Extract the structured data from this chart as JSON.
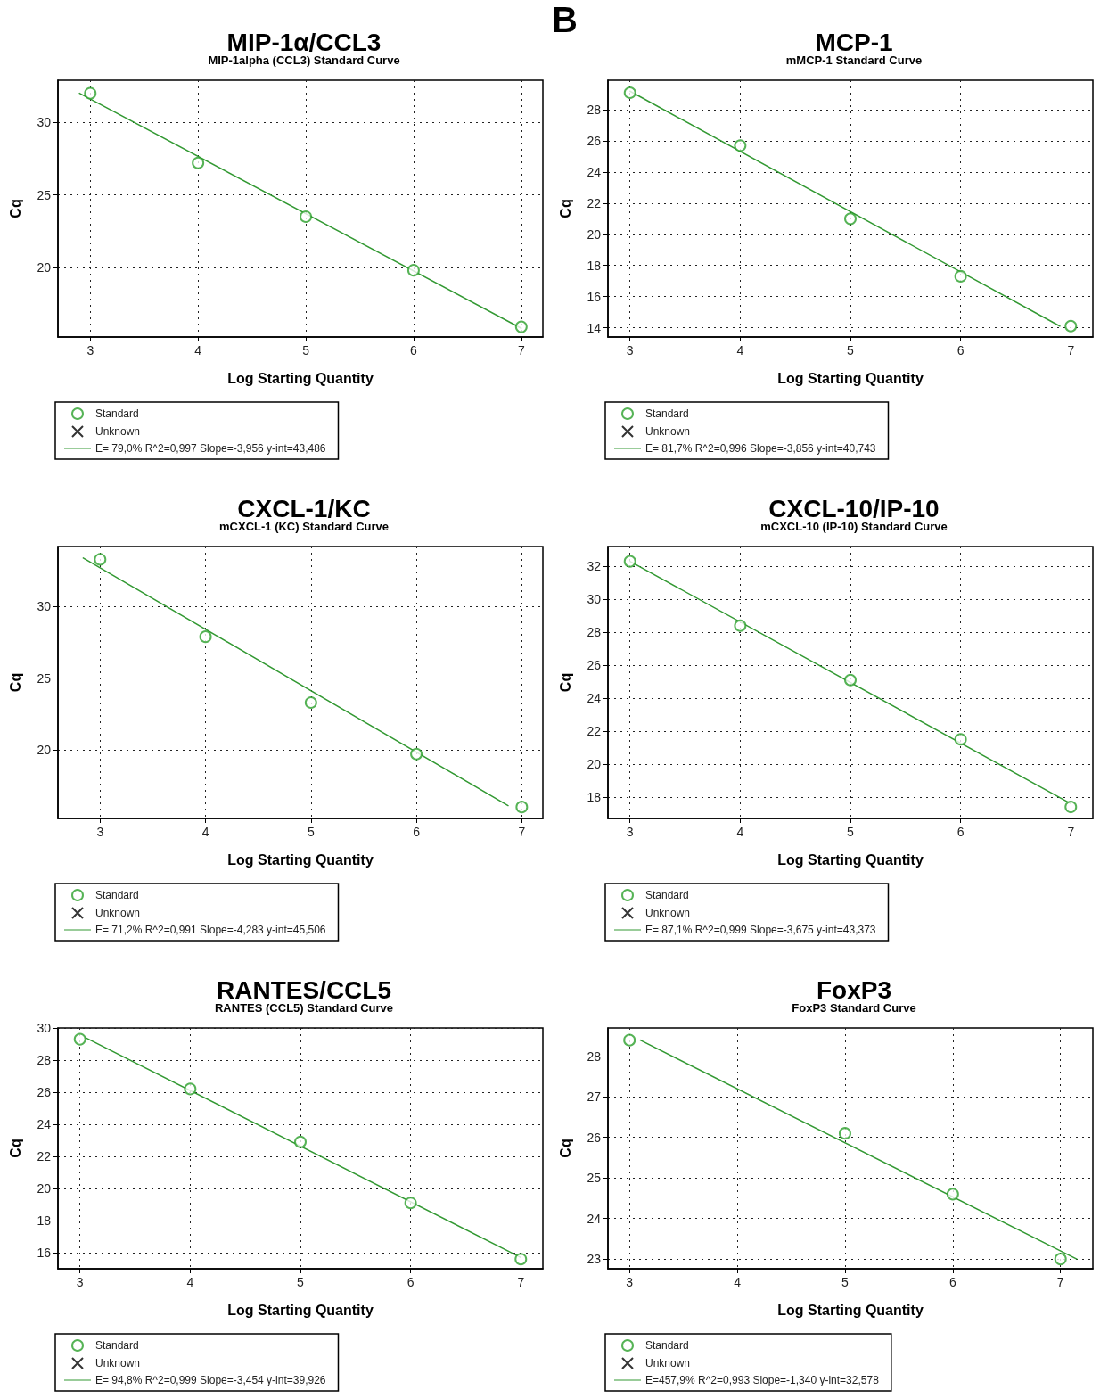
{
  "chart_data": [
    {
      "type": "scatter",
      "title": "MIP-1α/CCL3",
      "subtitle": "MIP-1alpha (CCL3) Standard Curve",
      "xlabel": "Log Starting Quantity",
      "ylabel": "Cq",
      "xlim": [
        2.7,
        7.2
      ],
      "xticks": [
        3,
        4,
        5,
        6,
        7
      ],
      "ylim": [
        15.2,
        32.9
      ],
      "yticks": [
        20,
        25,
        30
      ],
      "grid": true,
      "legend": "bottom left",
      "series": [
        {
          "name": "Standard",
          "marker": "circle",
          "color": "#2ca02c",
          "x": [
            3,
            4,
            5,
            6,
            7
          ],
          "values": [
            32.0,
            27.2,
            23.5,
            19.8,
            15.9
          ]
        },
        {
          "name": "Unknown",
          "marker": "cross",
          "color": "#000000"
        },
        {
          "name": "E= 79,0% R^2=0,997 Slope=-3,956 y-int=43,486",
          "type": "line",
          "marker": "none",
          "line_style": "solid",
          "color": "#339933",
          "x": [
            2.9,
            7.0
          ],
          "values": [
            32.0,
            15.8
          ]
        }
      ]
    },
    {
      "type": "scatter",
      "title": "MCP-1",
      "subtitle": "mMCP-1 Standard Curve",
      "annotations": [
        "B"
      ],
      "xlabel": "Log Starting Quantity",
      "ylabel": "Cq",
      "xlim": [
        2.8,
        7.2
      ],
      "xticks": [
        3,
        4,
        5,
        6,
        7
      ],
      "ylim": [
        13.4,
        29.9
      ],
      "yticks": [
        14,
        16,
        18,
        20,
        22,
        24,
        26,
        28
      ],
      "grid": true,
      "legend": "bottom left",
      "series": [
        {
          "name": "Standard",
          "marker": "circle",
          "color": "#2ca02c",
          "x": [
            3,
            4,
            5,
            6,
            7
          ],
          "values": [
            29.1,
            25.7,
            21.0,
            17.3,
            14.1
          ]
        },
        {
          "name": "Unknown",
          "marker": "cross",
          "color": "#000000"
        },
        {
          "name": "E= 81,7% R^2=0,996 Slope=-3,856 y-int=40,743",
          "type": "line",
          "marker": "none",
          "line_style": "solid",
          "color": "#339933",
          "x": [
            3.0,
            6.9
          ],
          "values": [
            29.2,
            14.1
          ]
        }
      ]
    },
    {
      "type": "scatter",
      "title": "CXCL-1/KC",
      "subtitle": "mCXCL-1 (KC) Standard Curve",
      "xlabel": "Log Starting Quantity",
      "ylabel": "Cq",
      "xlim": [
        2.6,
        7.2
      ],
      "xticks": [
        3,
        4,
        5,
        6,
        7
      ],
      "ylim": [
        15.2,
        34.2
      ],
      "yticks": [
        20,
        25,
        30
      ],
      "grid": true,
      "legend": "bottom left",
      "series": [
        {
          "name": "Standard",
          "marker": "circle",
          "color": "#2ca02c",
          "x": [
            3,
            4,
            5,
            6,
            7
          ],
          "values": [
            33.3,
            27.9,
            23.3,
            19.7,
            16.0
          ]
        },
        {
          "name": "Unknown",
          "marker": "cross",
          "color": "#000000"
        },
        {
          "name": "E= 71,2% R^2=0,991 Slope=-4,283 y-int=45,506",
          "type": "line",
          "marker": "none",
          "line_style": "solid",
          "color": "#339933",
          "x": [
            2.84,
            6.87
          ],
          "values": [
            33.4,
            16.1
          ]
        }
      ]
    },
    {
      "type": "scatter",
      "title": "CXCL-10/IP-10",
      "subtitle": "mCXCL-10 (IP-10) Standard Curve",
      "xlabel": "Log Starting Quantity",
      "ylabel": "Cq",
      "xlim": [
        2.8,
        7.2
      ],
      "xticks": [
        3,
        4,
        5,
        6,
        7
      ],
      "ylim": [
        16.7,
        33.2
      ],
      "yticks": [
        18,
        20,
        22,
        24,
        26,
        28,
        30,
        32
      ],
      "grid": true,
      "legend": "bottom left",
      "series": [
        {
          "name": "Standard",
          "marker": "circle",
          "color": "#2ca02c",
          "x": [
            3,
            4,
            5,
            6,
            7
          ],
          "values": [
            32.3,
            28.4,
            25.1,
            21.5,
            17.4
          ]
        },
        {
          "name": "Unknown",
          "marker": "cross",
          "color": "#000000"
        },
        {
          "name": "E= 87,1% R^2=0,999 Slope=-3,675 y-int=43,373",
          "type": "line",
          "marker": "none",
          "line_style": "solid",
          "color": "#339933",
          "x": [
            3.0,
            7.0
          ],
          "values": [
            32.3,
            17.6
          ]
        }
      ]
    },
    {
      "type": "scatter",
      "title": "RANTES/CCL5",
      "subtitle": "RANTES (CCL5) Standard Curve",
      "xlabel": "Log Starting Quantity",
      "ylabel": "Cq",
      "xlim": [
        2.8,
        7.2
      ],
      "xticks": [
        3,
        4,
        5,
        6,
        7
      ],
      "ylim": [
        15.0,
        30.0
      ],
      "yticks": [
        16,
        18,
        20,
        22,
        24,
        26,
        28,
        30
      ],
      "grid": true,
      "legend": "bottom left",
      "series": [
        {
          "name": "Standard",
          "marker": "circle",
          "color": "#2ca02c",
          "x": [
            3,
            4,
            5,
            6,
            7
          ],
          "values": [
            29.3,
            26.2,
            22.9,
            19.1,
            15.6
          ]
        },
        {
          "name": "Unknown",
          "marker": "cross",
          "color": "#000000"
        },
        {
          "name": "E= 94,8% R^2=0,999 Slope=-3,454 y-int=39,926",
          "type": "line",
          "marker": "none",
          "line_style": "solid",
          "color": "#339933",
          "x": [
            3.05,
            7.0
          ],
          "values": [
            29.4,
            15.7
          ]
        }
      ]
    },
    {
      "type": "scatter",
      "title": "FoxP3",
      "subtitle": "FoxP3 Standard Curve",
      "xlabel": "Log Starting Quantity",
      "ylabel": "Cq",
      "xlim": [
        2.8,
        7.3
      ],
      "xticks": [
        3,
        4,
        5,
        6,
        7
      ],
      "ylim": [
        22.76,
        28.7
      ],
      "yticks": [
        23,
        24,
        25,
        26,
        27,
        28
      ],
      "grid": true,
      "legend": "bottom left",
      "series": [
        {
          "name": "Standard",
          "marker": "circle",
          "color": "#2ca02c",
          "x": [
            3,
            5,
            6,
            7
          ],
          "values": [
            28.4,
            26.1,
            24.6,
            23.0
          ]
        },
        {
          "name": "Unknown",
          "marker": "cross",
          "color": "#000000"
        },
        {
          "name": "E=457,9% R^2=0,993 Slope=-1,340 y-int=32,578",
          "type": "line",
          "marker": "none",
          "line_style": "solid",
          "color": "#339933",
          "x": [
            3.1,
            7.15
          ],
          "values": [
            28.4,
            23.0
          ]
        }
      ]
    }
  ]
}
